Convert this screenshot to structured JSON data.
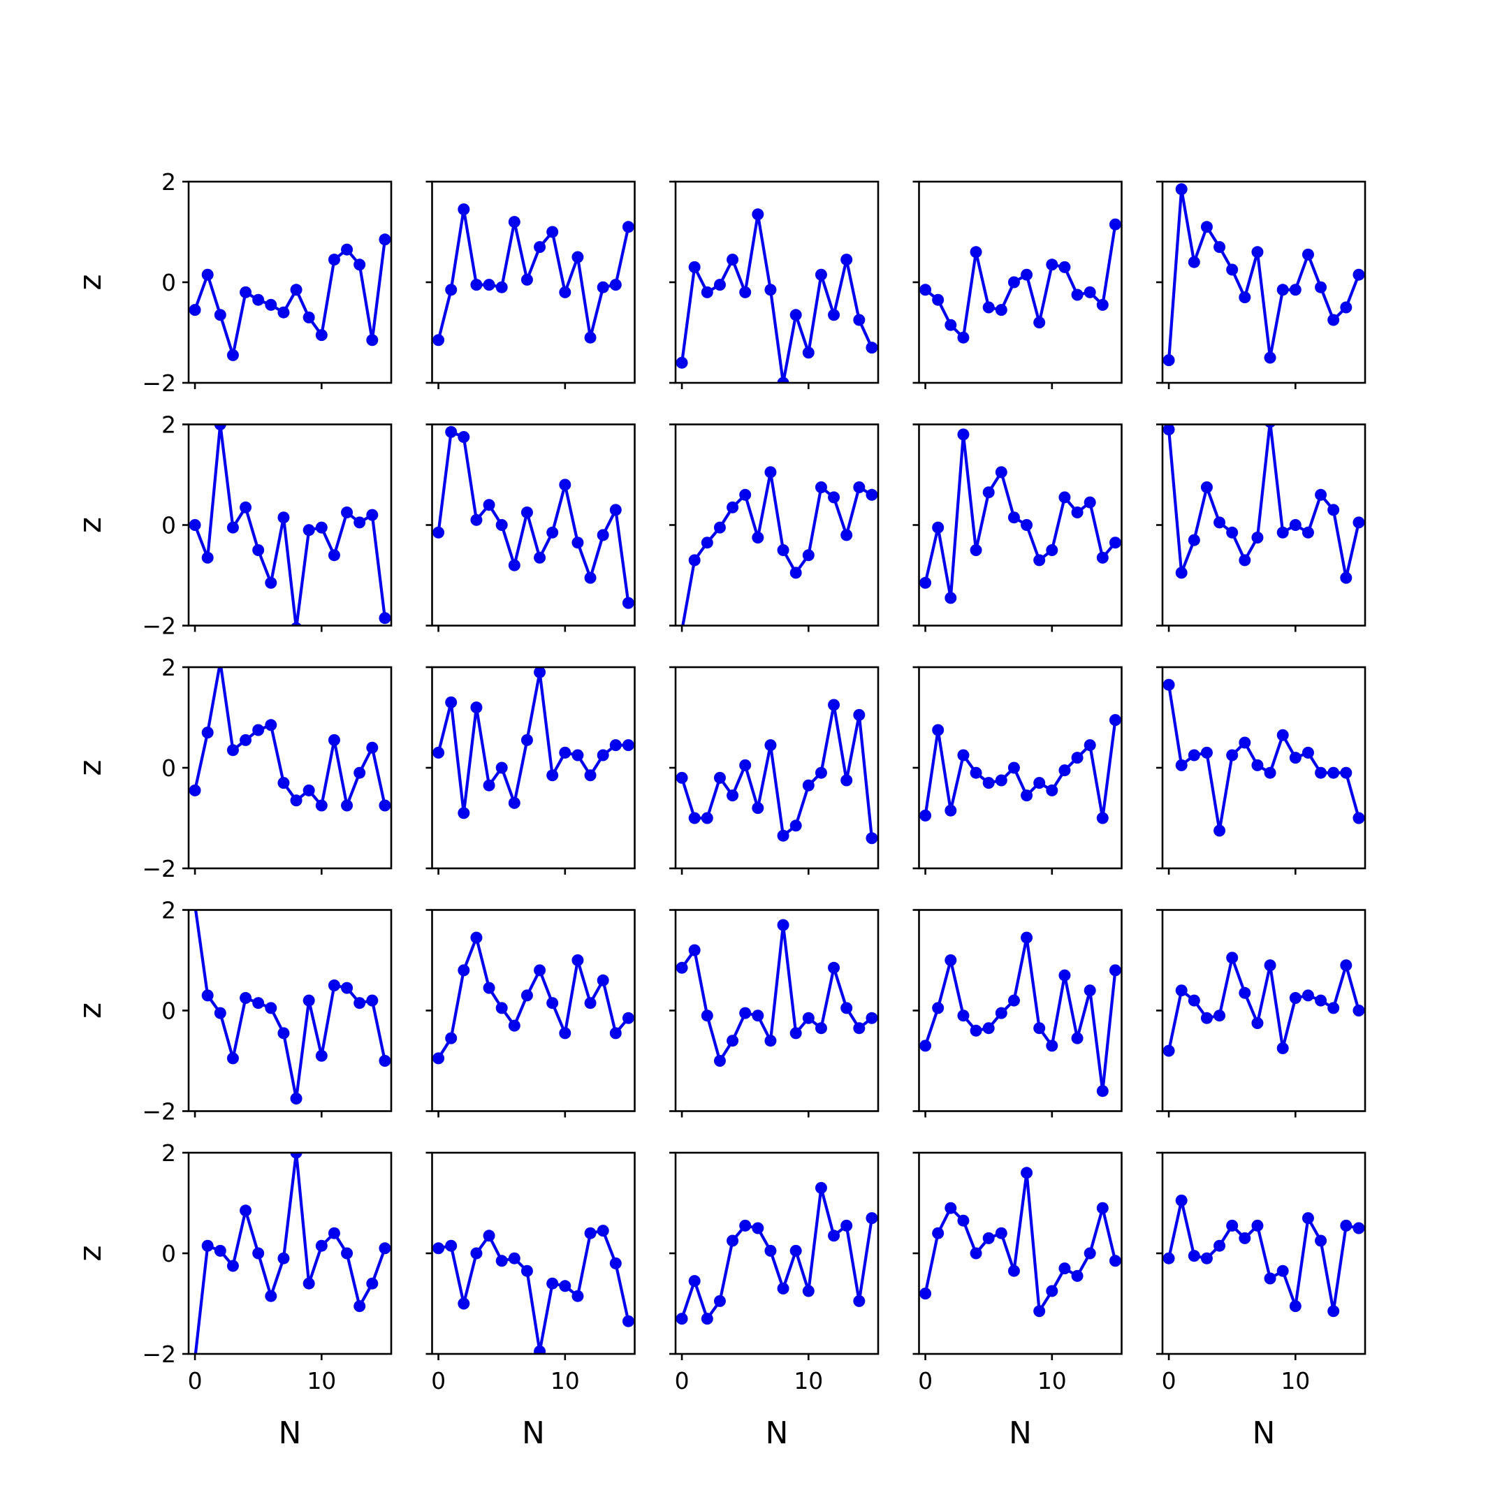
{
  "chart_data": {
    "type": "line",
    "layout": {
      "rows": 5,
      "cols": 5,
      "sharex": true,
      "sharey": true
    },
    "xlabel": "N",
    "ylabel": "z",
    "xlim": [
      -0.5,
      15.5
    ],
    "ylim": [
      -2,
      2
    ],
    "xticks": [
      0,
      10
    ],
    "yticks": [
      -2,
      0,
      2
    ],
    "grid": false,
    "line_color": "#0000ee",
    "x": [
      0,
      1,
      2,
      3,
      4,
      5,
      6,
      7,
      8,
      9,
      10,
      11,
      12,
      13,
      14,
      15
    ],
    "panels": [
      [
        -0.55,
        0.15,
        -0.65,
        -1.45,
        -0.2,
        -0.35,
        -0.45,
        -0.6,
        -0.15,
        -0.7,
        -1.05,
        0.45,
        0.65,
        0.35,
        -1.15,
        0.85
      ],
      [
        -1.15,
        -0.15,
        1.45,
        -0.05,
        -0.05,
        -0.1,
        1.2,
        0.05,
        0.7,
        1.0,
        -0.2,
        0.5,
        -1.1,
        -0.1,
        -0.05,
        1.1
      ],
      [
        -1.6,
        0.3,
        -0.2,
        -0.05,
        0.45,
        -0.2,
        1.35,
        -0.15,
        -2.0,
        -0.65,
        -1.4,
        0.15,
        -0.65,
        0.45,
        -0.75,
        -1.3
      ],
      [
        -0.15,
        -0.35,
        -0.85,
        -1.1,
        0.6,
        -0.5,
        -0.55,
        0.0,
        0.15,
        -0.8,
        0.35,
        0.3,
        -0.25,
        -0.2,
        -0.45,
        1.15
      ],
      [
        -1.55,
        1.85,
        0.4,
        1.1,
        0.7,
        0.25,
        -0.3,
        0.6,
        -1.5,
        -0.15,
        -0.15,
        0.55,
        -0.1,
        -0.75,
        -0.5,
        0.15
      ],
      [
        0.0,
        -0.65,
        2.0,
        -0.05,
        0.35,
        -0.5,
        -1.15,
        0.15,
        -2.05,
        -0.1,
        -0.05,
        -0.6,
        0.25,
        0.05,
        0.2,
        -1.85
      ],
      [
        -0.15,
        1.85,
        1.75,
        0.1,
        0.4,
        0.0,
        -0.8,
        0.25,
        -0.65,
        -0.15,
        0.8,
        -0.35,
        -1.05,
        -0.2,
        0.3,
        -1.55
      ],
      [
        -2.1,
        -0.7,
        -0.35,
        -0.05,
        0.35,
        0.6,
        -0.25,
        1.05,
        -0.5,
        -0.95,
        -0.6,
        0.75,
        0.55,
        -0.2,
        0.75,
        0.6
      ],
      [
        -1.15,
        -0.05,
        -1.45,
        1.8,
        -0.5,
        0.65,
        1.05,
        0.15,
        0.0,
        -0.7,
        -0.5,
        0.55,
        0.25,
        0.45,
        -0.65,
        -0.35
      ],
      [
        1.9,
        -0.95,
        -0.3,
        0.75,
        0.05,
        -0.15,
        -0.7,
        -0.25,
        2.05,
        -0.15,
        0.0,
        -0.15,
        0.6,
        0.3,
        -1.05,
        0.05
      ],
      [
        -0.45,
        0.7,
        2.1,
        0.35,
        0.55,
        0.75,
        0.85,
        -0.3,
        -0.65,
        -0.45,
        -0.75,
        0.55,
        -0.75,
        -0.1,
        0.4,
        -0.75
      ],
      [
        0.3,
        1.3,
        -0.9,
        1.2,
        -0.35,
        0.0,
        -0.7,
        0.55,
        1.9,
        -0.15,
        0.3,
        0.25,
        -0.15,
        0.25,
        0.45,
        0.45
      ],
      [
        -0.2,
        -1.0,
        -1.0,
        -0.2,
        -0.55,
        0.05,
        -0.8,
        0.45,
        -1.35,
        -1.15,
        -0.35,
        -0.1,
        1.25,
        -0.25,
        1.05,
        -1.4
      ],
      [
        -0.95,
        0.75,
        -0.85,
        0.25,
        -0.1,
        -0.3,
        -0.25,
        0.0,
        -0.55,
        -0.3,
        -0.45,
        -0.05,
        0.2,
        0.45,
        -1.0,
        0.95
      ],
      [
        1.65,
        0.05,
        0.25,
        0.3,
        -1.25,
        0.25,
        0.5,
        0.05,
        -0.1,
        0.65,
        0.2,
        0.3,
        -0.1,
        -0.1,
        -0.1,
        -1.0
      ],
      [
        2.1,
        0.3,
        -0.05,
        -0.95,
        0.25,
        0.15,
        0.05,
        -0.45,
        -1.75,
        0.2,
        -0.9,
        0.5,
        0.45,
        0.15,
        0.2,
        -1.0
      ],
      [
        -0.95,
        -0.55,
        0.8,
        1.45,
        0.45,
        0.05,
        -0.3,
        0.3,
        0.8,
        0.15,
        -0.45,
        1.0,
        0.15,
        0.6,
        -0.45,
        -0.15
      ],
      [
        0.85,
        1.2,
        -0.1,
        -1.0,
        -0.6,
        -0.05,
        -0.1,
        -0.6,
        1.7,
        -0.45,
        -0.15,
        -0.35,
        0.85,
        0.05,
        -0.35,
        -0.15
      ],
      [
        -0.7,
        0.05,
        1.0,
        -0.1,
        -0.4,
        -0.35,
        -0.05,
        0.2,
        1.45,
        -0.35,
        -0.7,
        0.7,
        -0.55,
        0.4,
        -1.6,
        0.8
      ],
      [
        -0.8,
        0.4,
        0.2,
        -0.15,
        -0.1,
        1.05,
        0.35,
        -0.25,
        0.9,
        -0.75,
        0.25,
        0.3,
        0.2,
        0.05,
        0.9,
        0.0
      ],
      [
        -2.1,
        0.15,
        0.05,
        -0.25,
        0.85,
        0.0,
        -0.85,
        -0.1,
        2.0,
        -0.6,
        0.15,
        0.4,
        0.0,
        -1.05,
        -0.6,
        0.1
      ],
      [
        0.1,
        0.15,
        -1.0,
        0.0,
        0.35,
        -0.15,
        -0.1,
        -0.35,
        -1.95,
        -0.6,
        -0.65,
        -0.85,
        0.4,
        0.45,
        -0.2,
        -1.35
      ],
      [
        -1.3,
        -0.55,
        -1.3,
        -0.95,
        0.25,
        0.55,
        0.5,
        0.05,
        -0.7,
        0.05,
        -0.75,
        1.3,
        0.35,
        0.55,
        -0.95,
        0.7
      ],
      [
        -0.8,
        0.4,
        0.9,
        0.65,
        0.0,
        0.3,
        0.4,
        -0.35,
        1.6,
        -1.15,
        -0.75,
        -0.3,
        -0.45,
        0.0,
        0.9,
        -0.15
      ],
      [
        -0.1,
        1.05,
        -0.05,
        -0.1,
        0.15,
        0.55,
        0.3,
        0.55,
        -0.5,
        -0.35,
        -1.05,
        0.7,
        0.25,
        -1.15,
        0.55,
        0.5
      ]
    ]
  }
}
